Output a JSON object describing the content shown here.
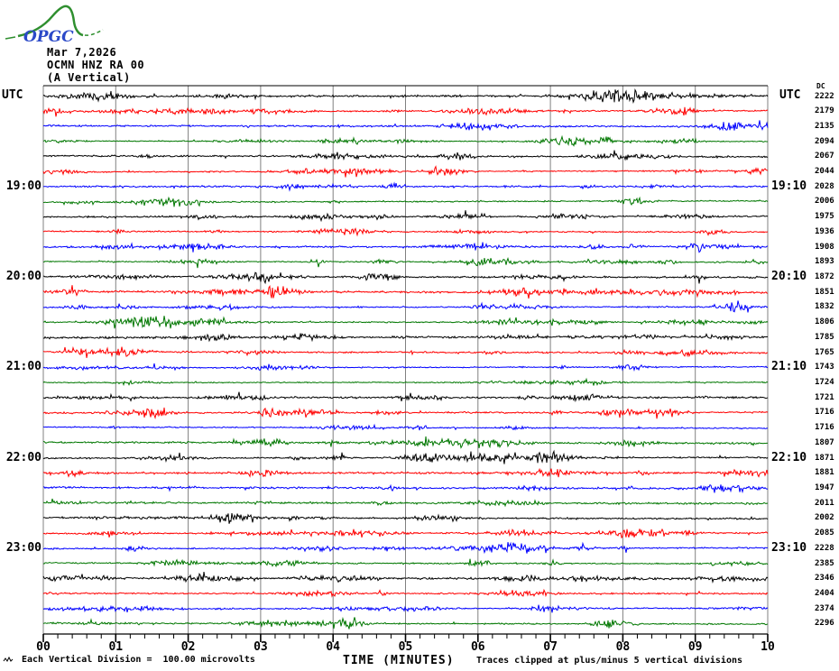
{
  "logo": {
    "text": "OPGC",
    "text_color": "#2b49c8",
    "curve_color": "#2f8f2f"
  },
  "header": {
    "date": "Mar 7,2026",
    "station": "OCMN HNZ RA 00",
    "component": "(A Vertical)"
  },
  "left_axis": {
    "utc_label": "UTC",
    "hour_labels": [
      {
        "row": 6,
        "text": "19:00"
      },
      {
        "row": 12,
        "text": "20:00"
      },
      {
        "row": 18,
        "text": "21:00"
      },
      {
        "row": 24,
        "text": "22:00"
      },
      {
        "row": 30,
        "text": "23:00"
      }
    ]
  },
  "right_axis": {
    "utc_label": "UTC",
    "dc_label": "DC",
    "hour_labels": [
      {
        "row": 6,
        "text": "19:10"
      },
      {
        "row": 12,
        "text": "20:10"
      },
      {
        "row": 18,
        "text": "21:10"
      },
      {
        "row": 24,
        "text": "22:10"
      },
      {
        "row": 30,
        "text": "23:10"
      }
    ]
  },
  "x_axis": {
    "title": "TIME (MINUTES)",
    "tick_labels": [
      "00",
      "01",
      "02",
      "03",
      "04",
      "05",
      "06",
      "07",
      "08",
      "09",
      "10"
    ]
  },
  "footer": {
    "scale_note": "Each Vertical Division =  100.00 microvolts",
    "clip_note": "Traces clipped at plus/minus 5 vertical divisions"
  },
  "icons": {
    "scale_marker": "tiny-waveform-zigzag"
  },
  "chart_data": {
    "type": "line",
    "title": "OCMN HNZ RA 00 (A Vertical) helicorder, Mar 7,2026",
    "xlabel": "TIME (MINUTES)",
    "x_range_minutes": [
      0,
      10
    ],
    "minutes_per_row": 10,
    "n_rows": 36,
    "first_row_start_utc": "18:00",
    "last_row_end_utc": "24:00",
    "row_color_cycle": [
      "#000000",
      "#ff0000",
      "#0000ff",
      "#007700"
    ],
    "grid_color": "#808080",
    "grid_minutes": [
      0,
      1,
      2,
      3,
      4,
      5,
      6,
      7,
      8,
      9,
      10
    ],
    "vertical_division_microvolts": 100.0,
    "clip_divisions": 5,
    "dc_offsets": [
      2222,
      2179,
      2135,
      2094,
      2067,
      2044,
      2028,
      2006,
      1975,
      1936,
      1908,
      1893,
      1872,
      1851,
      1832,
      1806,
      1785,
      1765,
      1743,
      1724,
      1721,
      1716,
      1716,
      1807,
      1871,
      1881,
      1947,
      2011,
      2002,
      2085,
      2228,
      2385,
      2346,
      2404,
      2374,
      2296
    ]
  }
}
